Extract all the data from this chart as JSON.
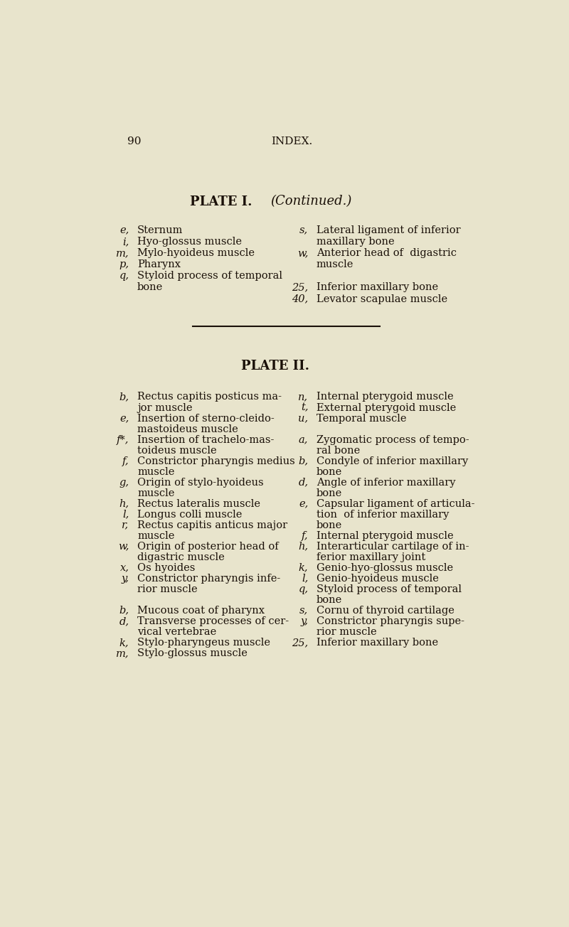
{
  "bg_color": "#e8e4cc",
  "text_color": "#1a1008",
  "page_num": "90",
  "page_title": "INDEX.",
  "plate1_title": "PLATE I.",
  "plate1_subtitle": "(Continued.)",
  "plate1_left": [
    [
      "e,",
      "Sternum"
    ],
    [
      "i,",
      "Hyo-glossus muscle"
    ],
    [
      "m,",
      "Mylo-hyoideus muscle"
    ],
    [
      "p,",
      "Pharynx"
    ],
    [
      "q,",
      "Styloid process of temporal"
    ],
    [
      "",
      "bone"
    ]
  ],
  "plate1_right": [
    [
      "s,",
      "Lateral ligament of inferio​r"
    ],
    [
      "",
      "maxillary bone"
    ],
    [
      "w,",
      "Anterior head of  digastric"
    ],
    [
      "",
      "muscle"
    ],
    [
      "",
      ""
    ],
    [
      "25,",
      "Inferior maxillary bone"
    ],
    [
      "40,",
      "Levator scapulae muscle"
    ]
  ],
  "plate2_title": "PLATE II.",
  "plate2_left": [
    [
      "b,",
      "Rectus capitis posticus ma-"
    ],
    [
      "",
      "jor muscle"
    ],
    [
      "e,",
      "Insertion of sterno-cleido-"
    ],
    [
      "",
      "mastoideus muscle"
    ],
    [
      "f*,",
      "Insertion of trachelo-mas-"
    ],
    [
      "",
      "toideus muscle"
    ],
    [
      "f,",
      "Constrictor pharyngis medius"
    ],
    [
      "",
      "muscle"
    ],
    [
      "g,",
      "Origin of stylo-hyoideus"
    ],
    [
      "",
      "muscle"
    ],
    [
      "h,",
      "Rectus lateralis muscle"
    ],
    [
      "l,",
      "Longus colli muscle"
    ],
    [
      "r,",
      "Rectus capitis anticus major"
    ],
    [
      "",
      "muscle"
    ],
    [
      "w,",
      "Origin of posterior head of"
    ],
    [
      "",
      "digastric muscle"
    ],
    [
      "x,",
      "Os hyoides"
    ],
    [
      "y,",
      "Constrictor pharyngis infe-"
    ],
    [
      "",
      "rior muscle"
    ],
    [
      "",
      ""
    ],
    [
      "b,",
      "Mucous coat of pharynx"
    ],
    [
      "d,",
      "Transverse processes of cer-"
    ],
    [
      "",
      "vical vertebrae"
    ],
    [
      "k,",
      "Stylo-pharyngeus muscle"
    ],
    [
      "m,",
      "Stylo-glossus muscle"
    ]
  ],
  "plate2_right": [
    [
      "n,",
      "Internal pterygoid muscle"
    ],
    [
      "t,",
      "External pterygoid muscle"
    ],
    [
      "u,",
      "Temporal muscle"
    ],
    [
      "",
      ""
    ],
    [
      "a,",
      "Zygomatic process of tempo-"
    ],
    [
      "",
      "ral bone"
    ],
    [
      "b,",
      "Condyle of inferior maxillary"
    ],
    [
      "",
      "bone"
    ],
    [
      "d,",
      "Angle of inferior maxillary"
    ],
    [
      "",
      "bone"
    ],
    [
      "e,",
      "Capsular ligament of articula-"
    ],
    [
      "",
      "tion  of inferior maxillary"
    ],
    [
      "",
      "bone"
    ],
    [
      "f,",
      "Internal pterygoid muscle"
    ],
    [
      "h,",
      "Interarticular cartilage of in-"
    ],
    [
      "",
      "ferior maxillary joint"
    ],
    [
      "k,",
      "Genio-hyo-glossus muscle"
    ],
    [
      "l,",
      "Genio-hyoideus muscle"
    ],
    [
      "q,",
      "Styloid process of temporal"
    ],
    [
      "",
      "bone"
    ],
    [
      "s,",
      "Cornu of thyroid cartilage"
    ],
    [
      "y,",
      "Constrictor pharyngis supe-"
    ],
    [
      "",
      "rior muscle"
    ],
    [
      "25,",
      "Inferior maxillary bone"
    ]
  ]
}
